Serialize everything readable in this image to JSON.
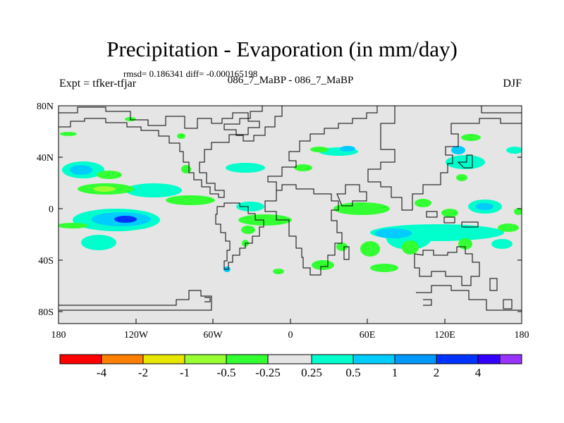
{
  "header": {
    "title": "Precipitation - Evaporation (in mm/day)",
    "stats": "rmsd= 0.186341 diff= -0.000165198",
    "subtitle": "086_7_MaBP - 086_7_MaBP",
    "left_label": "Expt = tfker-tfjar",
    "right_label": "DJF"
  },
  "map": {
    "lat_ticks": [
      "80N",
      "40N",
      "0",
      "40S",
      "80S"
    ],
    "lon_ticks": [
      "180",
      "120W",
      "60W",
      "0",
      "60E",
      "120E",
      "180"
    ],
    "background_color": "#e5e5e5"
  },
  "colorbar": {
    "colors": [
      "#ff0000",
      "#ff8000",
      "#e6e600",
      "#99ff33",
      "#33ff33",
      "#e5e5e5",
      "#00ffcc",
      "#00ccff",
      "#0099ff",
      "#0033ff",
      "#3300ff",
      "#9933ff"
    ],
    "labels": [
      "-4",
      "-2",
      "-1",
      "-0.5",
      "-0.25",
      "0.25",
      "0.5",
      "1",
      "2",
      "4"
    ]
  }
}
